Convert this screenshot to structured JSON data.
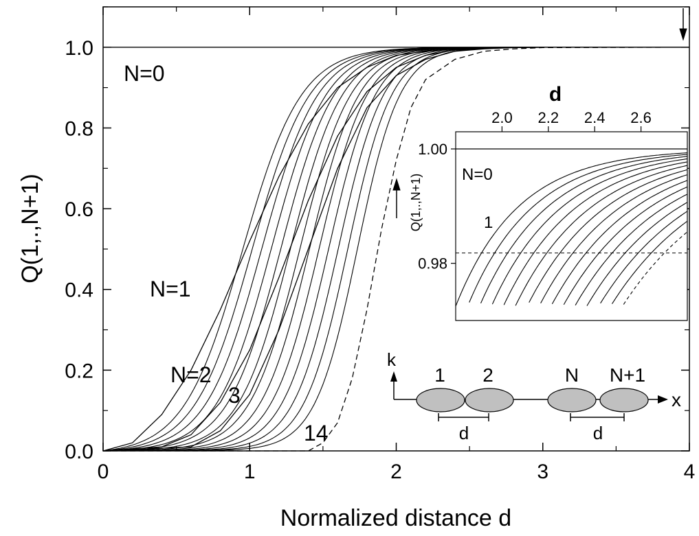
{
  "chart_data": [
    {
      "type": "line",
      "title": "",
      "xlabel": "Normalized distance d",
      "ylabel": "Q(1,.,N+1)",
      "xlim": [
        0,
        4
      ],
      "ylim": [
        0,
        1.1
      ],
      "xticks": [
        "0",
        "1",
        "2",
        "3",
        "4"
      ],
      "yticks": [
        "0.0",
        "0.2",
        "0.4",
        "0.6",
        "0.8",
        "1.0"
      ],
      "grid": false,
      "series": [
        {
          "name": "N=0",
          "x": [
            0,
            4
          ],
          "y": [
            1.0,
            1.0
          ],
          "style": "solid"
        },
        {
          "name": "N=1",
          "x": [
            0,
            0.2,
            0.4,
            0.6,
            0.8,
            1.0,
            1.2,
            1.4,
            1.6,
            1.8,
            2.0,
            2.2,
            2.4,
            2.6,
            2.8,
            3.0,
            4.0
          ],
          "y": [
            0,
            0.02,
            0.09,
            0.2,
            0.35,
            0.52,
            0.68,
            0.81,
            0.9,
            0.95,
            0.98,
            0.99,
            0.996,
            0.998,
            0.999,
            1.0,
            1.0
          ],
          "style": "solid"
        },
        {
          "name": "N=2",
          "x": [
            0,
            0.4,
            0.6,
            0.8,
            1.0,
            1.2,
            1.4,
            1.6,
            1.8,
            2.0,
            2.2,
            2.4,
            2.6,
            2.8,
            3.0,
            4.0
          ],
          "y": [
            0,
            0.01,
            0.04,
            0.12,
            0.25,
            0.43,
            0.62,
            0.78,
            0.89,
            0.95,
            0.98,
            0.993,
            0.997,
            0.999,
            1.0,
            1.0
          ],
          "style": "solid"
        },
        {
          "name": "3",
          "x": [
            0,
            0.6,
            0.8,
            1.0,
            1.2,
            1.4,
            1.6,
            1.8,
            2.0,
            2.2,
            2.4,
            2.6,
            2.8,
            3.0,
            4.0
          ],
          "y": [
            0,
            0.01,
            0.05,
            0.14,
            0.3,
            0.5,
            0.7,
            0.85,
            0.93,
            0.97,
            0.99,
            0.996,
            0.999,
            1.0,
            1.0
          ],
          "style": "solid"
        },
        {
          "name": "14",
          "x": [
            0,
            1.2,
            1.4,
            1.5,
            1.6,
            1.7,
            1.8,
            1.9,
            2.0,
            2.1,
            2.2,
            2.4,
            2.6,
            2.8,
            3.0,
            4.0
          ],
          "y": [
            0,
            0,
            0.0,
            0.02,
            0.07,
            0.18,
            0.35,
            0.55,
            0.72,
            0.85,
            0.92,
            0.97,
            0.99,
            0.996,
            0.999,
            1.0
          ],
          "style": "dashed"
        }
      ],
      "annotations": [
        "N=0",
        "N=1",
        "N=2",
        "3",
        "14"
      ]
    },
    {
      "type": "line",
      "title": "",
      "xlabel": "d",
      "ylabel": "Q(1,.,N+1)",
      "xlim": [
        1.8,
        2.8
      ],
      "ylim": [
        0.97,
        1.003
      ],
      "xticks": [
        "2.0",
        "2.2",
        "2.4",
        "2.6"
      ],
      "yticks": [
        "0.98",
        "1.00"
      ],
      "reference_line": {
        "y": 0.9818,
        "style": "dashed"
      },
      "annotations": [
        "N=0",
        "1"
      ]
    }
  ],
  "schematic": {
    "axis_k": "k",
    "axis_x": "x",
    "labels": [
      "1",
      "2",
      "N",
      "N+1"
    ],
    "spacing_label": "d"
  }
}
